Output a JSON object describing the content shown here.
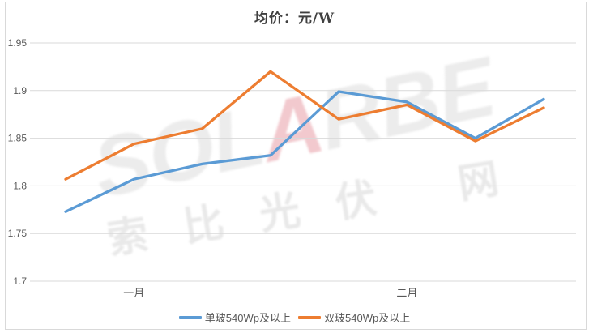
{
  "watermark": {
    "latin_pre": "SOL",
    "latin_accent": "A",
    "latin_post": "RBE",
    "cjk_chars": [
      "索",
      "比",
      "光",
      "伏",
      "网"
    ],
    "gray_color": "#ececec",
    "accent_color": "#f2c9ce",
    "cjk_color": "#e9e9e9"
  },
  "chart_data": {
    "type": "line",
    "title": "均价：元/W",
    "ylim": [
      1.7,
      1.95
    ],
    "y_ticks": [
      1.95,
      1.9,
      1.85,
      1.8,
      1.75,
      1.7
    ],
    "y_tick_labels": [
      "1.95",
      "1.9",
      "1.85",
      "1.8",
      "1.75",
      "1.7"
    ],
    "x_point_count": 8,
    "x_tick_labels": [
      {
        "label": "一月",
        "point_index": 1
      },
      {
        "label": "二月",
        "point_index": 5
      }
    ],
    "grid": true,
    "grid_color": "#d9d9d9",
    "axis_label_color": "#595959",
    "legend_position": "bottom",
    "series": [
      {
        "name": "单玻540Wp及以上",
        "color": "#5B9BD5",
        "values": [
          1.773,
          1.807,
          1.823,
          1.832,
          1.899,
          1.888,
          1.85,
          1.891
        ]
      },
      {
        "name": "双玻540Wp及以上",
        "color": "#ED7D31",
        "values": [
          1.807,
          1.844,
          1.86,
          1.92,
          1.87,
          1.885,
          1.847,
          1.882
        ]
      }
    ]
  }
}
